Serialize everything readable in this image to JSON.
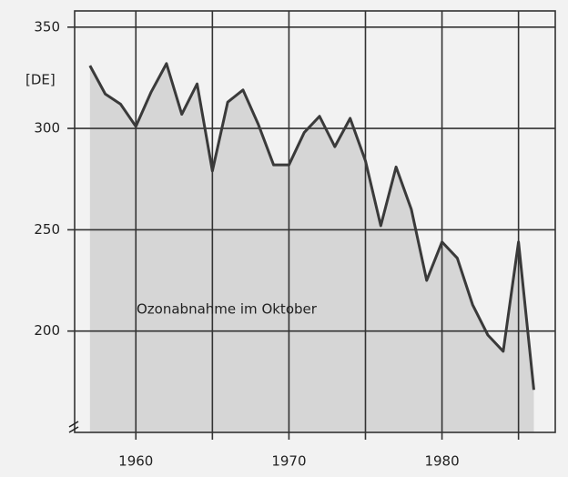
{
  "chart_data": {
    "type": "line",
    "unit_label": "[DE]",
    "annotation": "Ozonabnahme im Oktober",
    "x": [
      1957,
      1958,
      1959,
      1960,
      1961,
      1962,
      1963,
      1964,
      1965,
      1966,
      1967,
      1968,
      1969,
      1970,
      1971,
      1972,
      1973,
      1974,
      1975,
      1976,
      1977,
      1978,
      1979,
      1980,
      1981,
      1982,
      1983,
      1984,
      1985,
      1986
    ],
    "series": [
      {
        "color": "#3a3a3a",
        "values": [
          331,
          317,
          312,
          301,
          318,
          332,
          307,
          322,
          279,
          313,
          319,
          302,
          282,
          282,
          298,
          306,
          291,
          305,
          284,
          252,
          281,
          260,
          225,
          244,
          236,
          213,
          198,
          190,
          244,
          171
        ]
      }
    ],
    "xlim": [
      1956,
      1987.4
    ],
    "xticks": [
      1960,
      1970,
      1980
    ],
    "xgrid": [
      1960,
      1965,
      1970,
      1975,
      1980,
      1985
    ],
    "ylim": [
      150,
      358
    ],
    "yticks": [
      200,
      250,
      300,
      350
    ],
    "grid": true
  }
}
